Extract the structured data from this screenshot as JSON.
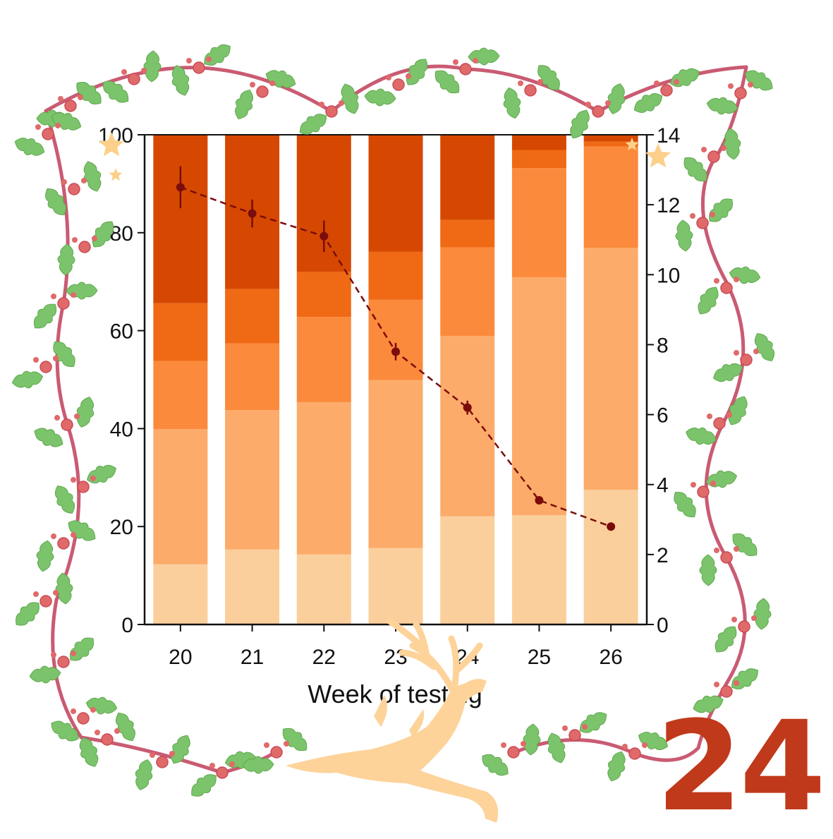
{
  "day_number": "24",
  "colors": {
    "accent_number": "#c0391b",
    "garland": "#c95b72",
    "berry": "#e06a6a",
    "holly": "#7cc46b",
    "reindeer": "#fdd39a",
    "star": "#fcd08a",
    "line": "#7a0c0c",
    "stack": [
      "#fbcf9c",
      "#fcab6a",
      "#fb8a3c",
      "#f06914",
      "#d64801"
    ]
  },
  "decorations": [
    "holly-garland-frame",
    "reindeer-silhouette",
    "star-icon"
  ],
  "chart_data": {
    "type": "bar",
    "stacked": true,
    "categories": [
      "20",
      "21",
      "22",
      "23",
      "24",
      "25",
      "26"
    ],
    "series": [
      {
        "values": [
          12.3,
          15.3,
          14.3,
          15.6,
          22.1,
          22.3,
          27.5
        ]
      },
      {
        "values": [
          27.6,
          28.5,
          31.1,
          34.3,
          36.8,
          48.6,
          49.4
        ]
      },
      {
        "values": [
          13.9,
          13.6,
          17.4,
          16.4,
          18.1,
          22.3,
          20.7
        ]
      },
      {
        "values": [
          11.8,
          11.1,
          9.2,
          9.8,
          5.6,
          3.7,
          1.0
        ]
      },
      {
        "values": [
          34.4,
          31.5,
          28.0,
          23.9,
          17.4,
          3.1,
          1.4
        ]
      }
    ],
    "line": {
      "axis": "right",
      "values": [
        12.5,
        11.75,
        11.1,
        7.8,
        6.2,
        3.55,
        2.8
      ],
      "errors": [
        0.6,
        0.4,
        0.45,
        0.25,
        0.2,
        0.0,
        0.0
      ],
      "style": "dashed-with-markers"
    },
    "xlabel": "Week of testing",
    "ylim": [
      0,
      100
    ],
    "yticks": [
      "0",
      "20",
      "40",
      "60",
      "80",
      "100"
    ],
    "y2lim": [
      0,
      14
    ],
    "y2ticks": [
      "0",
      "2",
      "4",
      "6",
      "8",
      "10",
      "12",
      "14"
    ],
    "grid": false
  }
}
